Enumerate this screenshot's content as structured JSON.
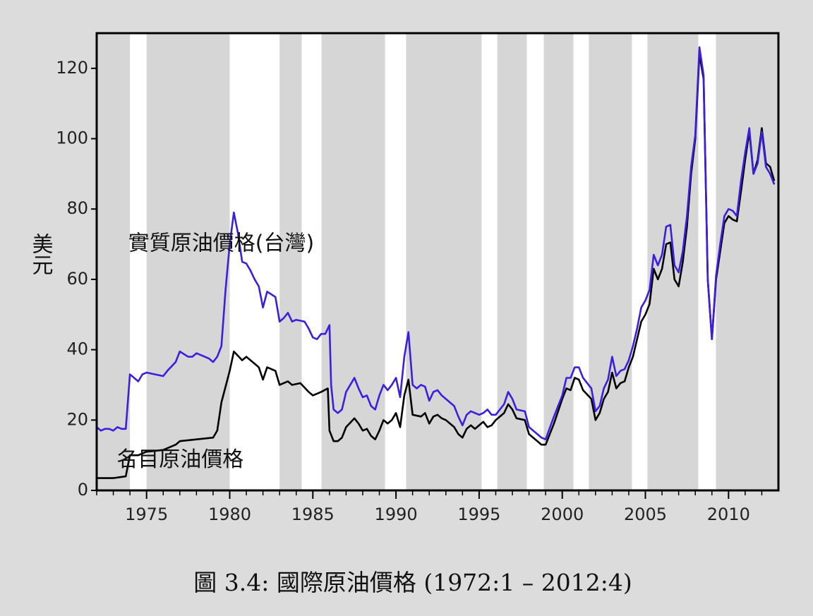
{
  "chart_data": {
    "type": "line",
    "caption": "圖 3.4: 國際原油價格 (1972:1 – 2012:4)",
    "ylabel": "美元",
    "annotations": [
      {
        "text": "實質原油價格(台灣)",
        "x": 1973.9,
        "y": 70
      },
      {
        "text": "名目原油價格",
        "x": 1973.2,
        "y": 8.5
      }
    ],
    "xlim": [
      1972,
      2013
    ],
    "ylim": [
      0,
      130
    ],
    "xticks": [
      1975,
      1980,
      1985,
      1990,
      1995,
      2000,
      2005,
      2010
    ],
    "xticks_minor": [
      1972,
      1973,
      1974,
      1975,
      1976,
      1977,
      1978,
      1979,
      1980,
      1981,
      1982,
      1983,
      1984,
      1985,
      1986,
      1987,
      1988,
      1989,
      1990,
      1991,
      1992,
      1993,
      1994,
      1995,
      1996,
      1997,
      1998,
      1999,
      2000,
      2001,
      2002,
      2003,
      2004,
      2005,
      2006,
      2007,
      2008,
      2009,
      2010,
      2011,
      2012
    ],
    "yticks": [
      0,
      20,
      40,
      60,
      80,
      100,
      120
    ],
    "shaded_periods": [
      [
        1974.0,
        1975.0
      ],
      [
        1980.0,
        1983.0
      ],
      [
        1984.33,
        1985.52
      ],
      [
        1989.34,
        1990.61
      ],
      [
        1995.15,
        1996.09
      ],
      [
        1997.87,
        1998.89
      ],
      [
        2000.67,
        2001.6
      ],
      [
        2004.19,
        2005.12
      ],
      [
        2008.18,
        2009.24
      ]
    ],
    "band_color": "#ffffff",
    "background": "#d6d6d6",
    "series": [
      {
        "name": "名目原油價格",
        "color": "#000000",
        "x": [
          1972,
          1973,
          1973.75,
          1974,
          1974.5,
          1975,
          1976,
          1976.75,
          1977,
          1978,
          1979,
          1979.25,
          1979.5,
          1980,
          1980.25,
          1980.75,
          1981,
          1981.5,
          1981.75,
          1982,
          1982.25,
          1982.75,
          1983,
          1983.5,
          1983.75,
          1984.25,
          1984.75,
          1985,
          1985.5,
          1985.9,
          1986,
          1986.25,
          1986.5,
          1986.75,
          1987,
          1987.5,
          1987.75,
          1988,
          1988.25,
          1988.5,
          1988.75,
          1989,
          1989.25,
          1989.5,
          1989.75,
          1990,
          1990.25,
          1990.5,
          1990.75,
          1991,
          1991.5,
          1991.75,
          1992,
          1992.25,
          1992.5,
          1992.75,
          1993,
          1993.5,
          1993.75,
          1994,
          1994.25,
          1994.5,
          1994.75,
          1995,
          1995.25,
          1995.5,
          1995.75,
          1996,
          1996.5,
          1996.75,
          1997,
          1997.25,
          1997.75,
          1998,
          1998.5,
          1998.75,
          1999,
          1999.5,
          2000,
          2000.25,
          2000.5,
          2000.75,
          2001,
          2001.25,
          2001.75,
          2002,
          2002.25,
          2002.5,
          2002.75,
          2003,
          2003.25,
          2003.5,
          2003.75,
          2004,
          2004.25,
          2004.5,
          2004.75,
          2005,
          2005.25,
          2005.5,
          2005.75,
          2006,
          2006.25,
          2006.5,
          2006.75,
          2007,
          2007.25,
          2007.5,
          2007.75,
          2008,
          2008.25,
          2008.5,
          2008.75,
          2009,
          2009.25,
          2009.5,
          2009.75,
          2010,
          2010.25,
          2010.5,
          2010.75,
          2011,
          2011.25,
          2011.5,
          2011.75,
          2012,
          2012.25,
          2012.5,
          2012.75
        ],
        "values": [
          3.5,
          3.5,
          4,
          10,
          10,
          11,
          11.5,
          13,
          14,
          14.5,
          15,
          17,
          25,
          34,
          39.5,
          37,
          38,
          36,
          35,
          31.5,
          35,
          34,
          30,
          31,
          30,
          30.5,
          28,
          27,
          28,
          29,
          17,
          14,
          14,
          15,
          18,
          20.5,
          19,
          17,
          17.5,
          15.5,
          14.5,
          17,
          20,
          19,
          20,
          22,
          18,
          27,
          31.5,
          21.5,
          21,
          22,
          19,
          21,
          21.5,
          20.5,
          20,
          18,
          16,
          15,
          17.5,
          18.5,
          17.5,
          18.5,
          19.5,
          18,
          18.5,
          20,
          22,
          24.5,
          23,
          20.5,
          20,
          16,
          14,
          13,
          13,
          19,
          26,
          29,
          28.5,
          32,
          31.5,
          28.5,
          26,
          20,
          22,
          26,
          28,
          33.5,
          29,
          30.5,
          31,
          35,
          38,
          43,
          48,
          50,
          53,
          63,
          60,
          63,
          70,
          70.5,
          60,
          58,
          65,
          75,
          90,
          100,
          124,
          117,
          60,
          43,
          60,
          68,
          76,
          78,
          77,
          76.5,
          85,
          94,
          102,
          90,
          94,
          103,
          93,
          92,
          88
        ]
      },
      {
        "name": "實質原油價格(台灣)",
        "color": "#3a1fe0",
        "x": [
          1972,
          1972.25,
          1972.5,
          1972.75,
          1973,
          1973.25,
          1973.5,
          1973.75,
          1974,
          1974.5,
          1974.75,
          1975,
          1975.5,
          1976,
          1976.25,
          1976.75,
          1977,
          1977.5,
          1977.75,
          1978,
          1978.5,
          1978.75,
          1979,
          1979.25,
          1979.5,
          1979.75,
          1980,
          1980.25,
          1980.5,
          1980.75,
          1981,
          1981.25,
          1981.5,
          1981.75,
          1982,
          1982.25,
          1982.75,
          1983,
          1983.25,
          1983.5,
          1983.75,
          1984,
          1984.5,
          1984.75,
          1985,
          1985.25,
          1985.5,
          1985.75,
          1986,
          1986.1,
          1986.25,
          1986.5,
          1986.75,
          1987,
          1987.25,
          1987.5,
          1987.75,
          1988,
          1988.25,
          1988.5,
          1988.75,
          1989,
          1989.25,
          1989.5,
          1989.75,
          1990,
          1990.25,
          1990.5,
          1990.75,
          1991,
          1991.25,
          1991.5,
          1991.75,
          1992,
          1992.25,
          1992.5,
          1992.75,
          1993,
          1993.5,
          1993.75,
          1994,
          1994.25,
          1994.5,
          1994.75,
          1995,
          1995.25,
          1995.5,
          1995.75,
          1996,
          1996.5,
          1996.75,
          1997,
          1997.25,
          1997.75,
          1998,
          1998.5,
          1998.75,
          1999,
          1999.5,
          2000,
          2000.25,
          2000.5,
          2000.75,
          2001,
          2001.25,
          2001.75,
          2002,
          2002.25,
          2002.5,
          2002.75,
          2003,
          2003.25,
          2003.5,
          2003.75,
          2004,
          2004.25,
          2004.5,
          2004.75,
          2005,
          2005.25,
          2005.5,
          2005.75,
          2006,
          2006.25,
          2006.5,
          2006.75,
          2007,
          2007.25,
          2007.5,
          2007.75,
          2008,
          2008.25,
          2008.5,
          2008.75,
          2009,
          2009.25,
          2009.5,
          2009.75,
          2010,
          2010.25,
          2010.5,
          2010.75,
          2011,
          2011.25,
          2011.5,
          2011.75,
          2012,
          2012.25,
          2012.5,
          2012.75
        ],
        "values": [
          18,
          17,
          17.5,
          17.5,
          17,
          18,
          17.5,
          17.5,
          33,
          31,
          33,
          33.5,
          33,
          32.5,
          34,
          36.5,
          39.5,
          38,
          38,
          39,
          38,
          37.5,
          36.5,
          38,
          41,
          57,
          70,
          79,
          73,
          65,
          64.5,
          62.5,
          60,
          58,
          52,
          56.5,
          55,
          48,
          49,
          50.5,
          48,
          48.5,
          48,
          46,
          43.5,
          43,
          44.5,
          44.5,
          47,
          30,
          23,
          22,
          23,
          28,
          30,
          32,
          29,
          26.5,
          27,
          24,
          23,
          27,
          30,
          28.5,
          30,
          32,
          26.5,
          38,
          45,
          30,
          29,
          30,
          29.5,
          25.5,
          28,
          28.5,
          27,
          26,
          24,
          21,
          18.5,
          21.5,
          22.5,
          22,
          21.5,
          22,
          23,
          21.5,
          21.5,
          24.5,
          28,
          26,
          23,
          22.5,
          18,
          16,
          15,
          14.5,
          21,
          27,
          32,
          32,
          35,
          35,
          32,
          29,
          22.5,
          24,
          29,
          31.5,
          38,
          32.5,
          34,
          34.5,
          37,
          41,
          46,
          52,
          54,
          57,
          67,
          64,
          67,
          75,
          75.5,
          64,
          62,
          68,
          78,
          92,
          101,
          126,
          118,
          60,
          43,
          61,
          70,
          78,
          80,
          79.5,
          78,
          88,
          96,
          103,
          90,
          93,
          102,
          92,
          90,
          87
        ]
      }
    ]
  }
}
